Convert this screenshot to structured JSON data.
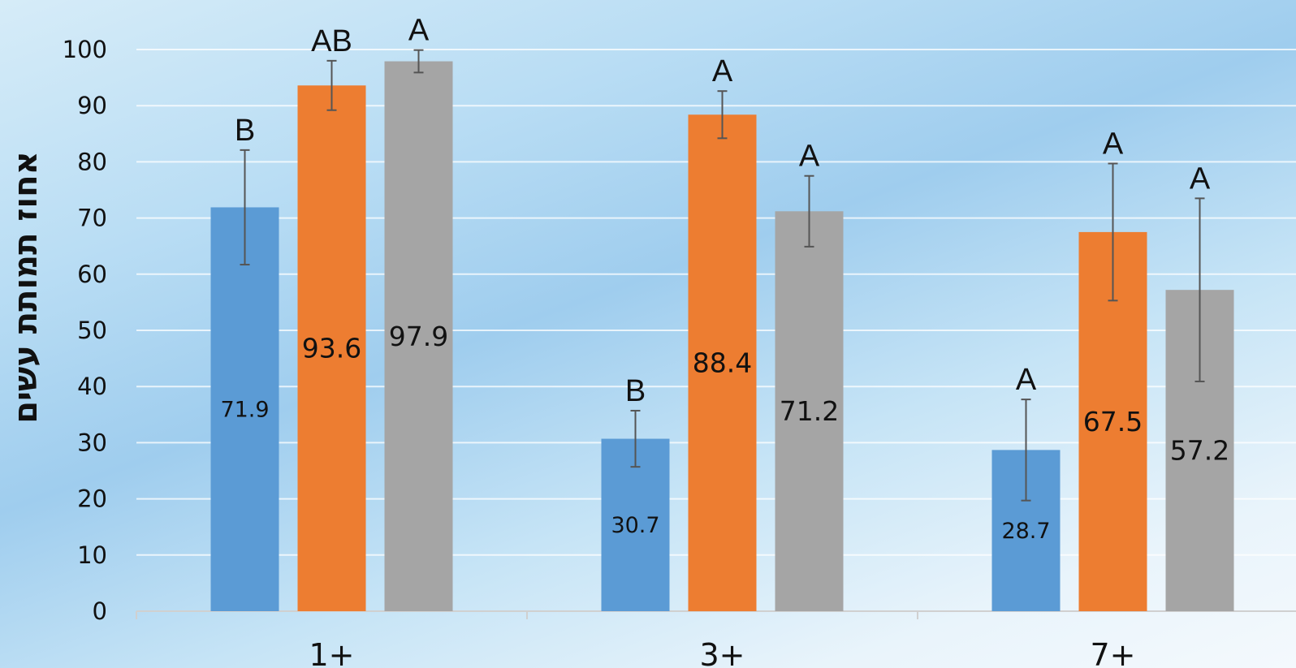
{
  "chart_data": {
    "type": "bar",
    "ylabel": "אחוז תמותת עשים",
    "ylim": [
      0,
      100
    ],
    "yticks": [
      0,
      10,
      20,
      30,
      40,
      50,
      60,
      70,
      80,
      90,
      100
    ],
    "categories": [
      "1+",
      "3+",
      "7+"
    ],
    "grid": true,
    "series": [
      {
        "color": "#5b9bd5",
        "values": [
          71.9,
          30.7,
          28.7
        ],
        "value_labels": [
          "71.9",
          "30.7",
          "28.7"
        ],
        "error": [
          [
            61.7,
            82.1
          ],
          [
            25.7,
            35.7
          ],
          [
            19.7,
            37.7
          ]
        ],
        "significance": [
          "B",
          "B",
          "A"
        ]
      },
      {
        "color": "#ed7d31",
        "values": [
          93.6,
          88.4,
          67.5
        ],
        "value_labels": [
          "93.6",
          "88.4",
          "67.5"
        ],
        "error": [
          [
            89.2,
            98.0
          ],
          [
            84.2,
            92.6
          ],
          [
            55.3,
            79.7
          ]
        ],
        "significance": [
          "AB",
          "A",
          "A"
        ]
      },
      {
        "color": "#a5a5a5",
        "values": [
          97.9,
          71.2,
          57.2
        ],
        "value_labels": [
          "97.9",
          "71.2",
          "57.2"
        ],
        "error": [
          [
            95.9,
            99.9
          ],
          [
            64.9,
            77.5
          ],
          [
            40.9,
            73.5
          ]
        ],
        "significance": [
          "A",
          "A",
          "A"
        ]
      }
    ]
  }
}
